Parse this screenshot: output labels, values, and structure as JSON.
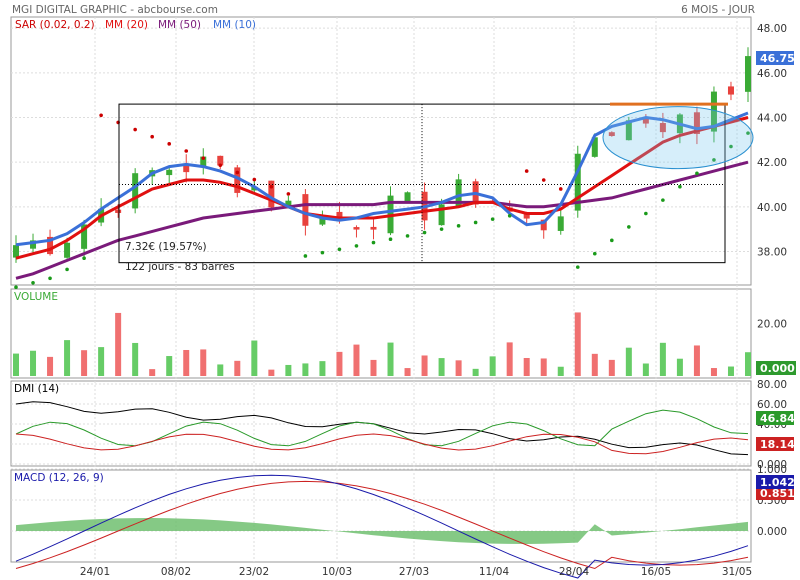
{
  "header": {
    "title": "MGI DIGITAL GRAPHIC - abcbourse.com",
    "period": "6 MOIS - JOUR"
  },
  "colors": {
    "up": "#3aaa35",
    "down": "#e8413c",
    "sar": "#cc0000",
    "sar_up": "#1a9a1a",
    "mm20": "#e01010",
    "mm50": "#7a1a7a",
    "mm10": "#3a70d8",
    "volume_up": "#66cc66",
    "volume_down": "#f07070",
    "dmi_plus": "#2a9a2a",
    "dmi_minus": "#cc2222",
    "adx": "#000000",
    "macd": "#1a1aaa",
    "signal": "#cc2222",
    "histogram": "#66bb66",
    "badge_last": "#3a70d8",
    "badge_dmi_plus": "#2a9a2a",
    "badge_dmi_minus": "#cc2222",
    "badge_macd": "#1a1aaa",
    "badge_signal": "#cc2222"
  },
  "chart_data": [
    {
      "type": "line",
      "panel": "price",
      "legend": [
        {
          "label": "SAR (0.02, 0.2)",
          "color": "#cc0000"
        },
        {
          "label": "MM (20)",
          "color": "#e01010"
        },
        {
          "label": "MM (50)",
          "color": "#7a1a7a"
        },
        {
          "label": "MM (10)",
          "color": "#3a70d8"
        }
      ],
      "ylim": [
        36.5,
        48.5
      ],
      "yticks": [
        "38.00",
        "40.00",
        "42.00",
        "44.00",
        "46.00",
        "48.00"
      ],
      "xticks": [
        "24/01",
        "08/02",
        "23/02",
        "10/03",
        "27/03",
        "11/04",
        "28/04",
        "16/05",
        "31/05"
      ],
      "last_price": "46.75",
      "measure_box": {
        "label": "7.32€ (19.57%)",
        "sublabel": "122 jours - 83 barres"
      },
      "mm10": [
        38.3,
        38.4,
        38.5,
        38.8,
        39.3,
        39.9,
        40.4,
        40.9,
        41.5,
        41.8,
        41.9,
        41.8,
        41.6,
        41.3,
        40.9,
        40.4,
        40.0,
        39.7,
        39.5,
        39.4,
        39.5,
        39.7,
        39.8,
        39.9,
        40.0,
        40.2,
        40.5,
        40.6,
        40.4,
        39.7,
        39.2,
        39.3,
        40.1,
        41.6,
        43.2,
        43.6,
        43.8,
        44.0,
        43.9,
        43.7,
        43.5,
        43.6,
        43.9,
        44.2
      ],
      "mm20": [
        37.7,
        37.9,
        38.1,
        38.5,
        39.0,
        39.6,
        40.0,
        40.4,
        40.8,
        41.0,
        41.2,
        41.2,
        41.1,
        40.9,
        40.6,
        40.3,
        40.0,
        39.7,
        39.6,
        39.5,
        39.5,
        39.5,
        39.6,
        39.7,
        39.8,
        39.9,
        40.0,
        40.2,
        40.2,
        39.9,
        39.7,
        39.7,
        39.9,
        40.4,
        40.9,
        41.4,
        41.9,
        42.4,
        42.9,
        43.2,
        43.4,
        43.6,
        43.8,
        44.0
      ],
      "mm50": [
        36.8,
        37.0,
        37.3,
        37.6,
        37.9,
        38.2,
        38.5,
        38.7,
        38.9,
        39.1,
        39.3,
        39.5,
        39.6,
        39.7,
        39.8,
        39.9,
        40.0,
        40.1,
        40.1,
        40.1,
        40.1,
        40.1,
        40.2,
        40.2,
        40.2,
        40.2,
        40.2,
        40.2,
        40.2,
        40.1,
        40.0,
        40.0,
        40.1,
        40.2,
        40.3,
        40.4,
        40.6,
        40.8,
        41.0,
        41.2,
        41.4,
        41.6,
        41.8,
        42.0
      ]
    },
    {
      "type": "bar",
      "panel": "volume",
      "legend": [
        {
          "label": "VOLUME",
          "color": "#66cc66"
        }
      ],
      "yticks": [
        "20.00"
      ],
      "last_value": "0.000"
    },
    {
      "type": "line",
      "panel": "dmi",
      "legend": [
        {
          "label": "DMI (14)",
          "color": "#000000"
        }
      ],
      "yticks": [
        "0.000",
        "20.00",
        "40.00",
        "60.00",
        "80.00"
      ],
      "plus_di": "46.84",
      "minus_di": "18.14"
    },
    {
      "type": "line",
      "panel": "macd",
      "legend": [
        {
          "label": "MACD (12, 26, 9)",
          "color": "#1a1aaa"
        }
      ],
      "yticks": [
        "0.000",
        "0.500",
        "1.000"
      ],
      "macd": "1.042",
      "signal": "0.851"
    }
  ]
}
